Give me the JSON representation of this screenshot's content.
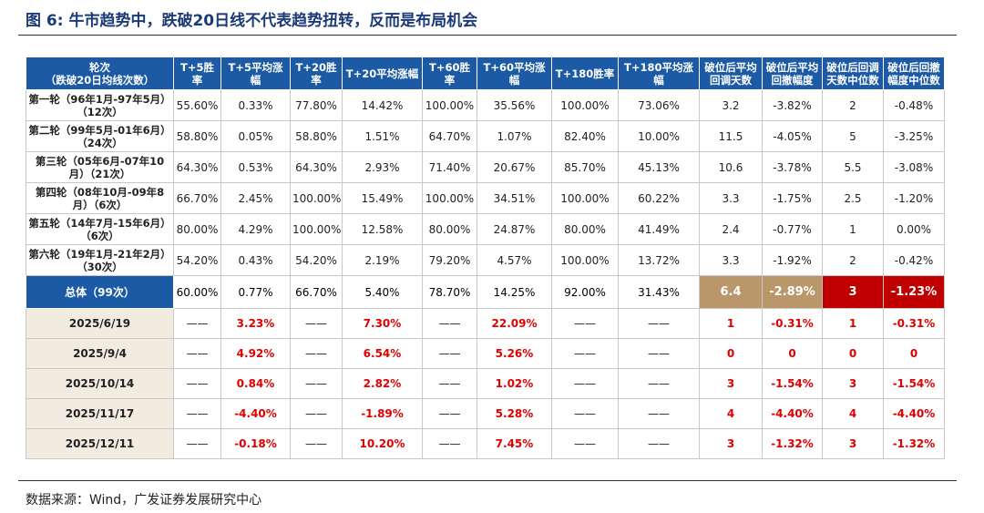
{
  "title": "图 6: 牛市趋势中，跌破20日线不代表趋势扭转，反而是布局机会",
  "table": {
    "header": [
      "轮次\n（跌破20日均线次数）",
      "T+5胜率",
      "T+5平均涨幅",
      "T+20胜率",
      "T+20平均涨幅",
      "T+60胜率",
      "T+60平均涨\n幅",
      "T+180胜率",
      "T+180平均涨幅",
      "破位后平均\n回调天数",
      "破位后平均\n回撤幅度",
      "破位后回调\n天数中位数",
      "破位后回撤\n幅度中位数"
    ],
    "rows": [
      [
        "第一轮（96年1月-97年5月）（12次）",
        "55.60%",
        "0.33%",
        "77.80%",
        "14.42%",
        "100.00%",
        "35.56%",
        "100.00%",
        "73.06%",
        "3.2",
        "-3.82%",
        "2",
        "-0.48%"
      ],
      [
        "第二轮（99年5月-01年6月）（24次）",
        "58.80%",
        "0.05%",
        "58.80%",
        "1.51%",
        "64.70%",
        "1.07%",
        "82.40%",
        "10.00%",
        "11.5",
        "-4.05%",
        "5",
        "-3.25%"
      ],
      [
        "第三轮（05年6月-07年10月）（21次）",
        "64.30%",
        "0.53%",
        "64.30%",
        "2.93%",
        "71.40%",
        "20.67%",
        "85.70%",
        "45.13%",
        "10.6",
        "-3.78%",
        "5.5",
        "-3.08%"
      ],
      [
        "第四轮（08年10月-09年8月）（6次）",
        "66.70%",
        "2.45%",
        "100.00%",
        "15.49%",
        "100.00%",
        "34.51%",
        "100.00%",
        "60.22%",
        "3.3",
        "-1.75%",
        "2.5",
        "-1.20%"
      ],
      [
        "第五轮（14年7月-15年6月）（6次）",
        "80.00%",
        "4.29%",
        "100.00%",
        "12.58%",
        "80.00%",
        "24.87%",
        "80.00%",
        "41.49%",
        "2.4",
        "-0.77%",
        "1",
        "0.00%"
      ],
      [
        "第六轮（19年1月-21年2月）（30次）",
        "54.20%",
        "0.43%",
        "54.20%",
        "2.19%",
        "79.20%",
        "4.57%",
        "100.00%",
        "13.72%",
        "3.3",
        "-1.92%",
        "2",
        "-0.42%"
      ]
    ],
    "summary": [
      "总体（99次）",
      "60.00%",
      "0.77%",
      "66.70%",
      "5.40%",
      "78.70%",
      "14.25%",
      "92.00%",
      "31.43%",
      "6.4",
      "-2.89%",
      "3",
      "-1.23%"
    ],
    "recent": [
      [
        "2025/6/19",
        "——",
        "3.23%",
        "——",
        "7.30%",
        "——",
        "22.09%",
        "——",
        "——",
        "1",
        "-0.31%",
        "1",
        "-0.31%"
      ],
      [
        "2025/9/4",
        "——",
        "4.92%",
        "——",
        "6.54%",
        "——",
        "5.26%",
        "——",
        "——",
        "0",
        "0",
        "0",
        "0"
      ],
      [
        "2025/10/14",
        "——",
        "0.84%",
        "——",
        "2.82%",
        "——",
        "1.02%",
        "——",
        "——",
        "3",
        "-1.54%",
        "3",
        "-1.54%"
      ],
      [
        "2025/11/17",
        "——",
        "-4.40%",
        "——",
        "-1.89%",
        "——",
        "5.28%",
        "——",
        "——",
        "4",
        "-4.40%",
        "4",
        "-4.40%"
      ],
      [
        "2025/12/11",
        "——",
        "-0.18%",
        "——",
        "10.20%",
        "——",
        "7.45%",
        "——",
        "——",
        "3",
        "-1.32%",
        "3",
        "-1.32%"
      ]
    ]
  },
  "source": "数据来源：Wind，广发证券发展研究中心"
}
